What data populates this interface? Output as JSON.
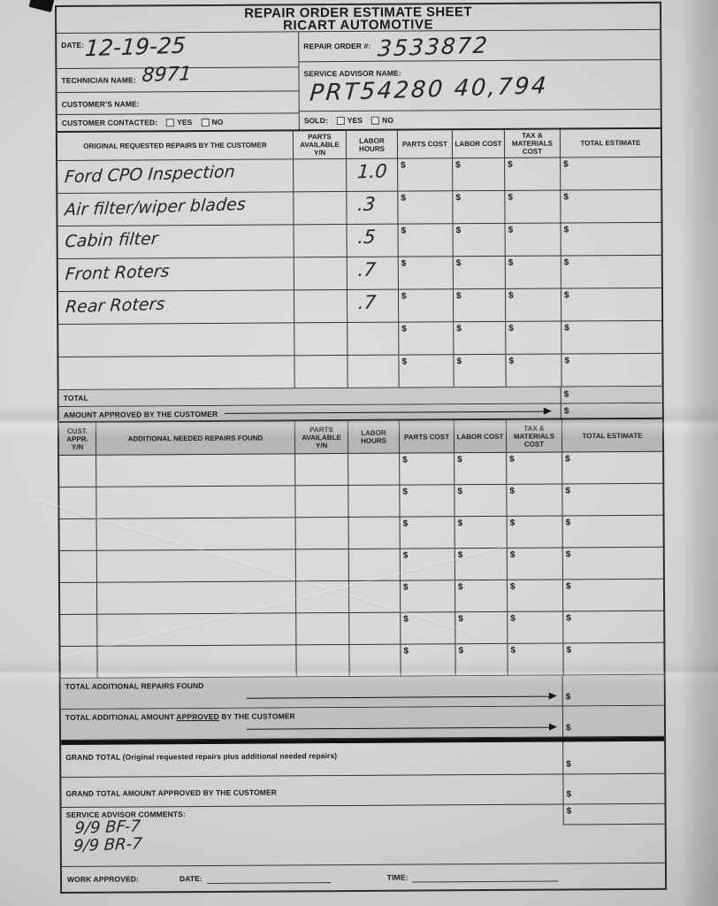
{
  "currency": "$",
  "header": {
    "title_line1": "REPAIR ORDER ESTIMATE SHEET",
    "title_line2": "RICART AUTOMOTIVE"
  },
  "info": {
    "date_label": "DATE:",
    "date_value": "12-19-25",
    "repair_order_label": "REPAIR ORDER #:",
    "repair_order_value": "3533872",
    "technician_label": "TECHNICIAN NAME:",
    "technician_value": "8971",
    "service_advisor_label": "SERVICE ADVISOR NAME:",
    "service_advisor_value": "PRT54280    40,794",
    "customer_name_label": "CUSTOMER'S NAME:",
    "customer_contacted_label": "CUSTOMER CONTACTED:",
    "sold_label": "SOLD:",
    "yes_label": "YES",
    "no_label": "NO"
  },
  "original_table": {
    "col_repairs": "ORIGINAL REQUESTED REPAIRS BY THE CUSTOMER",
    "col_parts_available": "PARTS AVAILABLE Y/N",
    "col_labor_hours": "LABOR HOURS",
    "col_parts_cost": "PARTS COST",
    "col_labor_cost": "LABOR COST",
    "col_tax_materials": "TAX & MATERIALS COST",
    "col_total_estimate": "TOTAL ESTIMATE",
    "rows": [
      {
        "repair": "Ford CPO Inspection",
        "labor_hours": "1.0"
      },
      {
        "repair": "Air filter/wiper blades",
        "labor_hours": ".3"
      },
      {
        "repair": "Cabin filter",
        "labor_hours": ".5"
      },
      {
        "repair": "Front Roters",
        "labor_hours": ".7"
      },
      {
        "repair": "Rear Roters",
        "labor_hours": ".7"
      },
      {
        "repair": "",
        "labor_hours": ""
      },
      {
        "repair": "",
        "labor_hours": ""
      }
    ],
    "total_label": "TOTAL",
    "amount_approved_label": "AMOUNT APPROVED BY THE CUSTOMER"
  },
  "additional_table": {
    "col_cust_appr": "CUST. APPR. Y/N",
    "col_repairs": "ADDITIONAL NEEDED REPAIRS FOUND",
    "col_parts_available": "PARTS AVAILABLE Y/N",
    "col_labor_hours": "LABOR HOURS",
    "col_parts_cost": "PARTS COST",
    "col_labor_cost": "LABOR COST",
    "col_tax_materials": "TAX & MATERIALS COST",
    "col_total_estimate": "TOTAL ESTIMATE",
    "empty_rows": 7,
    "total_found_label": "TOTAL ADDITIONAL REPAIRS FOUND",
    "total_approved_prefix": "TOTAL ADDITIONAL AMOUNT ",
    "total_approved_underlined": "APPROVED",
    "total_approved_suffix": " BY THE CUSTOMER"
  },
  "summary": {
    "grand_total_label": "GRAND TOTAL (Original requested repairs plus additional needed repairs)",
    "grand_total_approved_label": "GRAND TOTAL AMOUNT APPROVED BY THE CUSTOMER",
    "comments_label": "SERVICE ADVISOR COMMENTS:",
    "comments_line1": "9/9 BF-7",
    "comments_line2": "9/9 BR-7",
    "work_approved_label": "WORK APPROVED:",
    "date_label": "DATE:",
    "time_label": "TIME:"
  }
}
